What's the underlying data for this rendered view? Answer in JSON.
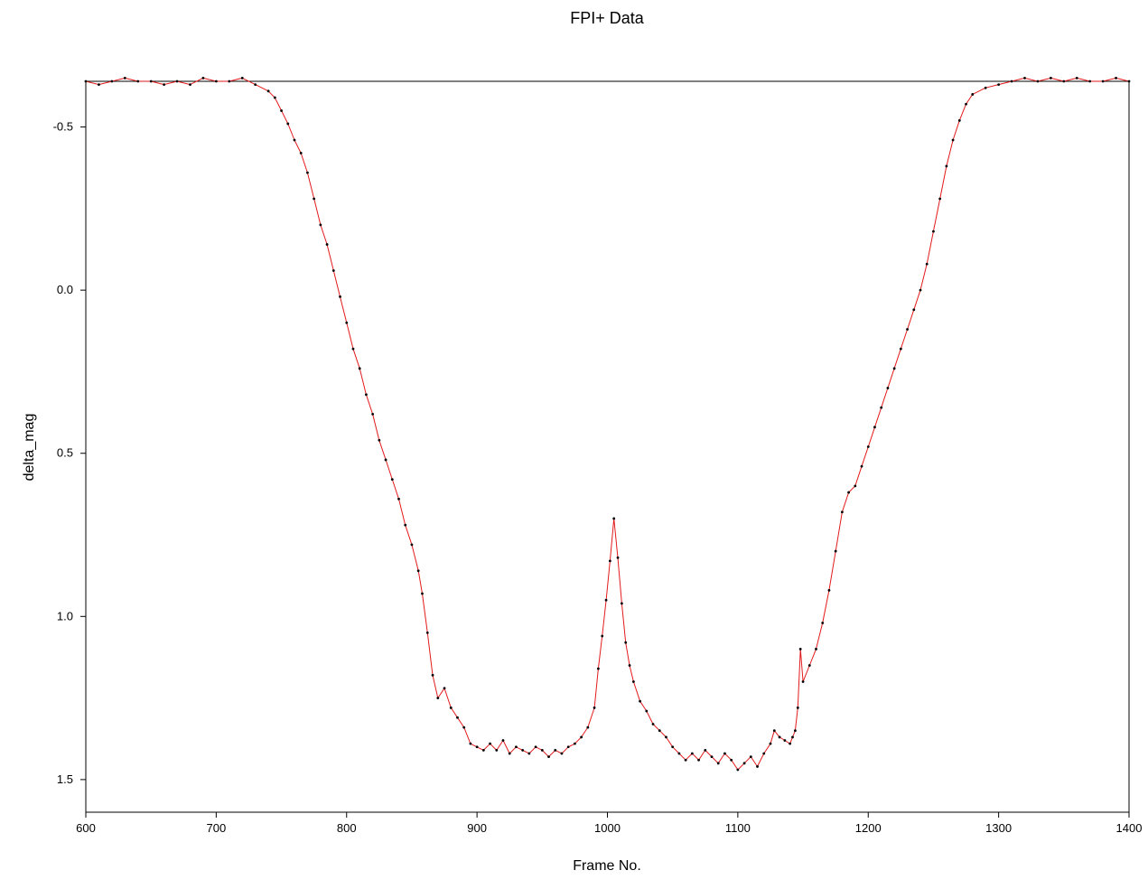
{
  "chart_data": {
    "type": "line",
    "title": "FPI+ Data",
    "xlabel": "Frame No.",
    "ylabel": "delta_mag",
    "xlim": [
      600,
      1400
    ],
    "ylim": [
      -0.64,
      1.6
    ],
    "y_inverted": true,
    "grid": false,
    "x_ticks": [
      600,
      700,
      800,
      900,
      1000,
      1100,
      1200,
      1300,
      1400
    ],
    "x_tick_labels": [
      "600",
      "700",
      "800",
      "900",
      "1000",
      "1100",
      "1200",
      "1300",
      "1400"
    ],
    "y_ticks": [
      -0.5,
      0.0,
      0.5,
      1.0,
      1.5
    ],
    "y_tick_labels": [
      "-0.5",
      "0.0",
      "0.5",
      "1.0",
      "1.5"
    ],
    "line_color": "#e31a1c",
    "marker_color": "#000000",
    "series": [
      {
        "x": [
          600,
          610,
          620,
          630,
          640,
          650,
          660,
          670,
          680,
          690,
          700,
          710,
          720,
          730,
          740,
          745,
          750,
          755,
          760,
          765,
          770,
          775,
          780,
          785,
          790,
          795,
          800,
          805,
          810,
          815,
          820,
          825,
          830,
          835,
          840,
          845,
          850,
          855,
          858,
          862,
          866,
          870,
          875,
          880,
          885,
          890,
          895,
          900,
          905,
          910,
          915,
          920,
          925,
          930,
          935,
          940,
          945,
          950,
          955,
          960,
          965,
          970,
          975,
          980,
          985,
          990,
          993,
          996,
          999,
          1002,
          1005,
          1008,
          1011,
          1014,
          1017,
          1020,
          1025,
          1030,
          1035,
          1040,
          1045,
          1050,
          1055,
          1060,
          1065,
          1070,
          1075,
          1080,
          1085,
          1090,
          1095,
          1100,
          1105,
          1110,
          1115,
          1120,
          1125,
          1128,
          1132,
          1136,
          1140,
          1142,
          1144,
          1146,
          1148,
          1150,
          1155,
          1160,
          1165,
          1170,
          1175,
          1180,
          1185,
          1190,
          1195,
          1200,
          1205,
          1210,
          1215,
          1220,
          1225,
          1230,
          1235,
          1240,
          1245,
          1250,
          1255,
          1260,
          1265,
          1270,
          1275,
          1280,
          1290,
          1300,
          1310,
          1320,
          1330,
          1340,
          1350,
          1360,
          1370,
          1380,
          1390,
          1400
        ],
        "y": [
          -0.64,
          -0.63,
          -0.64,
          -0.65,
          -0.64,
          -0.64,
          -0.63,
          -0.64,
          -0.63,
          -0.65,
          -0.64,
          -0.64,
          -0.65,
          -0.63,
          -0.61,
          -0.59,
          -0.55,
          -0.51,
          -0.46,
          -0.42,
          -0.36,
          -0.28,
          -0.2,
          -0.14,
          -0.06,
          0.02,
          0.1,
          0.18,
          0.24,
          0.32,
          0.38,
          0.46,
          0.52,
          0.58,
          0.64,
          0.72,
          0.78,
          0.86,
          0.93,
          1.05,
          1.18,
          1.25,
          1.22,
          1.28,
          1.31,
          1.34,
          1.39,
          1.4,
          1.41,
          1.39,
          1.41,
          1.38,
          1.42,
          1.4,
          1.41,
          1.42,
          1.4,
          1.41,
          1.43,
          1.41,
          1.42,
          1.4,
          1.39,
          1.37,
          1.34,
          1.28,
          1.16,
          1.06,
          0.95,
          0.83,
          0.7,
          0.82,
          0.96,
          1.08,
          1.15,
          1.2,
          1.26,
          1.29,
          1.33,
          1.35,
          1.37,
          1.4,
          1.42,
          1.44,
          1.42,
          1.44,
          1.41,
          1.43,
          1.45,
          1.42,
          1.44,
          1.47,
          1.45,
          1.43,
          1.46,
          1.42,
          1.39,
          1.35,
          1.37,
          1.38,
          1.39,
          1.37,
          1.35,
          1.28,
          1.1,
          1.2,
          1.15,
          1.1,
          1.02,
          0.92,
          0.8,
          0.68,
          0.62,
          0.6,
          0.54,
          0.48,
          0.42,
          0.36,
          0.3,
          0.24,
          0.18,
          0.12,
          0.06,
          0.0,
          -0.08,
          -0.18,
          -0.28,
          -0.38,
          -0.46,
          -0.52,
          -0.57,
          -0.6,
          -0.62,
          -0.63,
          -0.64,
          -0.65,
          -0.64,
          -0.65,
          -0.64,
          -0.65,
          -0.64,
          -0.64,
          -0.65,
          -0.64
        ]
      }
    ]
  }
}
